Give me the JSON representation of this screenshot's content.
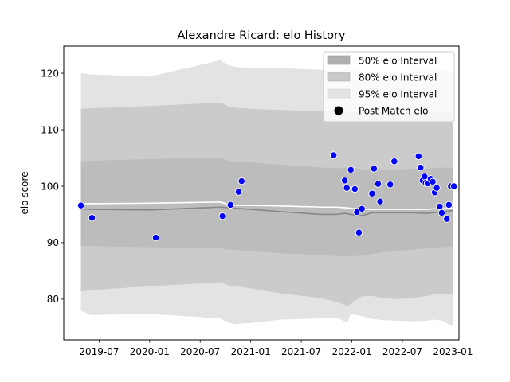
{
  "chart_data": {
    "type": "line",
    "title": "Alexandre Ricard: elo History",
    "xlabel": "",
    "ylabel": "elo score",
    "ylim": [
      72.8,
      124.8
    ],
    "xlim": [
      2019.15,
      2023.06
    ],
    "yticks": [
      80,
      90,
      100,
      110,
      120
    ],
    "xticks": [
      {
        "value": 2019.5,
        "label": "2019-07"
      },
      {
        "value": 2020.0,
        "label": "2020-01"
      },
      {
        "value": 2020.5,
        "label": "2020-07"
      },
      {
        "value": 2021.0,
        "label": "2021-01"
      },
      {
        "value": 2021.5,
        "label": "2021-07"
      },
      {
        "value": 2022.0,
        "label": "2022-01"
      },
      {
        "value": 2022.5,
        "label": "2022-07"
      },
      {
        "value": 2023.0,
        "label": "2023-01"
      }
    ],
    "legend": {
      "position": "top-right",
      "entries": [
        {
          "label": "50% elo Interval",
          "color": "#b0b0b0"
        },
        {
          "label": "80% elo Interval",
          "color": "#c8c8c8"
        },
        {
          "label": "95% elo Interval",
          "color": "#e3e3e3"
        },
        {
          "label": "Post Match elo",
          "color": "#000000"
        }
      ]
    },
    "colors": {
      "band95": "#e3e3e3",
      "band80": "#cbcbcb",
      "band50": "#bcbcbc",
      "mean": "#888888",
      "median": "#ffffff",
      "points": "#0000ff"
    },
    "bands": {
      "x": [
        2019.32,
        2019.42,
        2020.0,
        2020.7,
        2020.77,
        2020.85,
        2021.0,
        2021.3,
        2021.7,
        2021.85,
        2021.93,
        2021.96,
        2021.99,
        2022.1,
        2022.2,
        2022.3,
        2022.45,
        2022.6,
        2022.75,
        2022.8,
        2022.9,
        2022.97,
        2023.0
      ],
      "hi95": [
        120.0,
        119.8,
        119.4,
        122.3,
        121.5,
        121.1,
        121.0,
        120.9,
        120.6,
        120.5,
        120.7,
        121.6,
        120.6,
        120.3,
        120.3,
        120.3,
        120.3,
        120.4,
        120.5,
        120.4,
        120.5,
        120.5,
        120.4
      ],
      "hi80": [
        113.7,
        113.8,
        114.2,
        114.8,
        114.2,
        113.9,
        113.7,
        113.5,
        113.3,
        113.2,
        113.3,
        113.4,
        113.3,
        113.0,
        113.0,
        113.0,
        113.0,
        113.1,
        113.2,
        113.2,
        113.3,
        113.3,
        113.2
      ],
      "hi50": [
        104.4,
        104.5,
        104.8,
        105.0,
        104.6,
        104.4,
        104.2,
        103.8,
        103.3,
        103.2,
        103.2,
        103.4,
        103.3,
        103.0,
        103.0,
        103.0,
        103.0,
        103.1,
        103.1,
        103.2,
        103.3,
        103.3,
        103.3
      ],
      "lo50": [
        89.5,
        89.4,
        89.2,
        89.0,
        88.8,
        88.7,
        88.5,
        88.1,
        87.8,
        87.6,
        87.6,
        87.6,
        87.6,
        87.7,
        88.0,
        88.3,
        88.5,
        88.8,
        89.0,
        89.1,
        89.2,
        89.3,
        89.4
      ],
      "lo80": [
        81.4,
        81.6,
        82.3,
        83.0,
        82.5,
        82.3,
        81.9,
        81.0,
        80.2,
        79.5,
        79.0,
        78.7,
        79.2,
        80.5,
        80.6,
        80.2,
        80.0,
        80.2,
        80.6,
        80.8,
        81.0,
        80.9,
        80.8
      ],
      "lo95": [
        78.0,
        77.2,
        77.4,
        76.6,
        75.9,
        75.6,
        75.8,
        76.4,
        76.6,
        76.7,
        76.1,
        76.0,
        77.5,
        77.0,
        76.5,
        76.3,
        76.2,
        76.1,
        76.2,
        76.4,
        76.2,
        75.4,
        75.2
      ]
    },
    "mean_line": {
      "x": [
        2019.32,
        2019.42,
        2020.0,
        2020.7,
        2020.77,
        2020.85,
        2021.0,
        2021.3,
        2021.7,
        2021.85,
        2021.93,
        2021.99,
        2022.1,
        2022.2,
        2022.3,
        2022.45,
        2022.6,
        2022.75,
        2022.8,
        2022.9,
        2022.97,
        2023.0
      ],
      "y": [
        96.0,
        95.9,
        95.8,
        96.3,
        96.2,
        96.1,
        95.9,
        95.5,
        95.0,
        95.0,
        95.2,
        95.0,
        94.8,
        95.3,
        95.3,
        95.3,
        95.3,
        95.2,
        95.3,
        95.5,
        95.6,
        95.7
      ]
    },
    "median_line": {
      "x": [
        2019.32,
        2019.42,
        2020.0,
        2020.7,
        2020.77,
        2020.85,
        2021.0,
        2021.3,
        2021.7,
        2021.85,
        2021.93,
        2021.99,
        2022.1,
        2022.2,
        2022.3,
        2022.45,
        2022.6,
        2022.75,
        2022.8,
        2022.9,
        2022.97,
        2023.0
      ],
      "y": [
        96.9,
        96.9,
        97.0,
        97.2,
        96.8,
        96.6,
        96.6,
        96.5,
        96.3,
        96.3,
        96.2,
        96.1,
        95.9,
        95.9,
        95.9,
        95.9,
        95.9,
        95.9,
        96.0,
        96.0,
        96.1,
        96.1
      ]
    },
    "post_match_elo": {
      "x": [
        2019.32,
        2019.43,
        2020.06,
        2020.72,
        2020.8,
        2020.88,
        2020.91,
        2021.82,
        2021.93,
        2021.95,
        2021.99,
        2022.03,
        2022.05,
        2022.07,
        2022.1,
        2022.2,
        2022.22,
        2022.26,
        2022.28,
        2022.38,
        2022.42,
        2022.66,
        2022.68,
        2022.7,
        2022.72,
        2022.73,
        2022.75,
        2022.78,
        2022.8,
        2022.82,
        2022.84,
        2022.87,
        2022.89,
        2022.94,
        2022.96,
        2022.98,
        2023.01
      ],
      "y": [
        96.6,
        94.4,
        90.9,
        94.7,
        96.7,
        99.0,
        100.9,
        105.5,
        101.0,
        99.7,
        102.9,
        99.5,
        95.4,
        91.8,
        96.0,
        98.7,
        103.1,
        100.4,
        97.3,
        100.3,
        104.4,
        105.3,
        103.3,
        101.0,
        101.7,
        100.6,
        100.5,
        101.3,
        100.8,
        98.9,
        99.7,
        96.4,
        95.3,
        94.2,
        96.7,
        100.0,
        100.0
      ]
    }
  }
}
